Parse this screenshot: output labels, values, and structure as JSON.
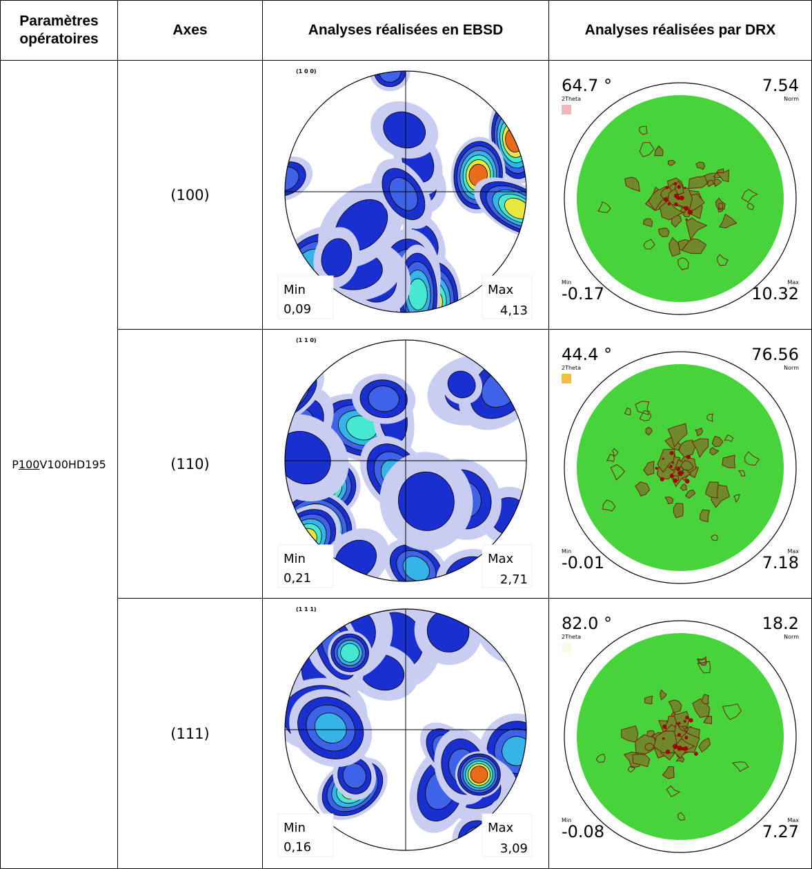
{
  "table": {
    "headers": [
      "Paramètres opératoires",
      "Axes",
      "Analyses réalisées en EBSD",
      "Analyses réalisées par DRX"
    ],
    "parameter": {
      "before": "P",
      "underlined": "100",
      "after": "V100HD195"
    },
    "rows": [
      {
        "axis": "(100)",
        "ebsd": {
          "label": "(1 0 0)",
          "min_label": "Min",
          "min": "0,09",
          "max_label": "Max",
          "max": "4,13"
        },
        "drx": {
          "angle": "64.7 °",
          "angle_label": "2Theta",
          "norm": "7.54",
          "norm_label": "Norm",
          "min_label": "Min",
          "min": "-0.17",
          "max_label": "Max",
          "max": "10.32",
          "swatch": "#f2b8b8"
        }
      },
      {
        "axis": "(110)",
        "ebsd": {
          "label": "(1 1 0)",
          "min_label": "Min",
          "min": "0,21",
          "max_label": "Max",
          "max": "2,71"
        },
        "drx": {
          "angle": "44.4 °",
          "angle_label": "2Theta",
          "norm": "76.56",
          "norm_label": "Norm",
          "min_label": "Min",
          "min": "-0.01",
          "max_label": "Max",
          "max": "7.18",
          "swatch": "#f0c040"
        }
      },
      {
        "axis": "(111)",
        "ebsd": {
          "label": "(1 1 1)",
          "min_label": "Min",
          "min": "0,16",
          "max_label": "Max",
          "max": "3,09"
        },
        "drx": {
          "angle": "82.0 °",
          "angle_label": "2Theta",
          "norm": "18.2",
          "norm_label": "Norm",
          "min_label": "Min",
          "min": "-0.08",
          "max_label": "Max",
          "max": "7.27",
          "swatch": "#fbfbe8"
        }
      }
    ]
  }
}
